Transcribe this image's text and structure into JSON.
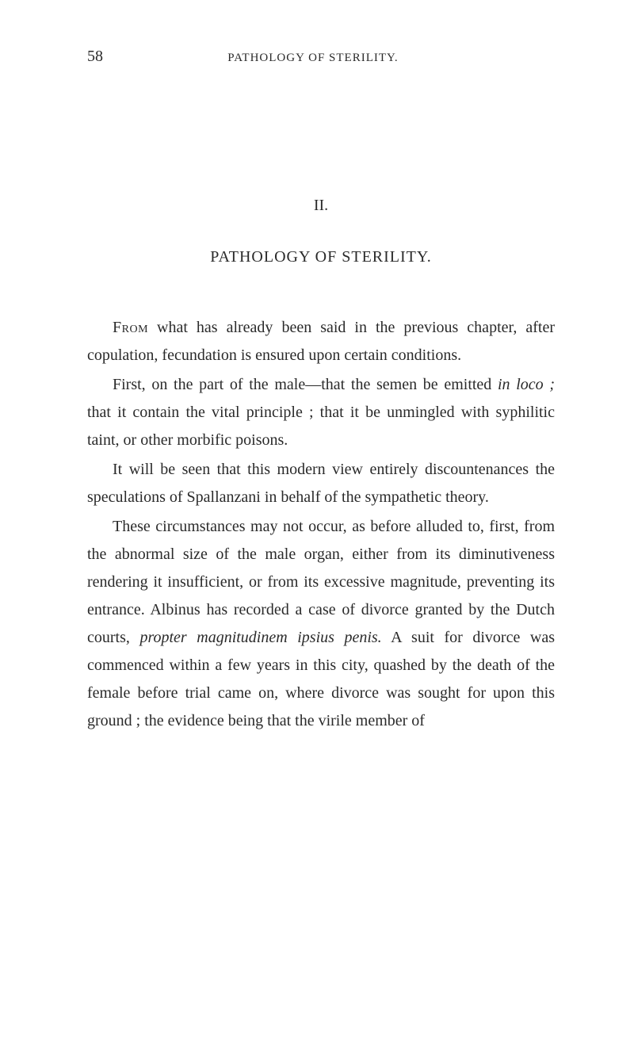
{
  "page": {
    "number": "58",
    "running_head": "PATHOLOGY OF STERILITY.",
    "chapter_number": "II.",
    "chapter_title": "PATHOLOGY OF STERILITY.",
    "paragraphs": {
      "p1_lead": "From",
      "p1_rest": " what has already been said in the previous chapter, after copulation, fecundation is ensured upon certain conditions.",
      "p2_a": "First, on the part of the male—that the semen be emitted ",
      "p2_it1": "in loco ;",
      "p2_b": " that it contain the vital principle ; that it be unmingled with syphilitic taint, or other morbific poisons.",
      "p3": "It will be seen that this modern view entirely discountenances the speculations of Spallanzani in behalf of the sympathetic theory.",
      "p4_a": "These circumstances may not occur, as before alluded to, first, from the abnormal size of the male organ, either from its diminutiveness rendering it insufficient, or from its excessive magnitude, preventing its entrance. Albinus has recorded a case of divorce granted by the Dutch courts, ",
      "p4_it1": "propter magnitudinem ipsius penis.",
      "p4_b": " A suit for divorce was commenced within a few years in this city, quashed by the death of the female before trial came on, where divorce was sought for upon this ground ; the evidence being that the virile member of"
    }
  }
}
